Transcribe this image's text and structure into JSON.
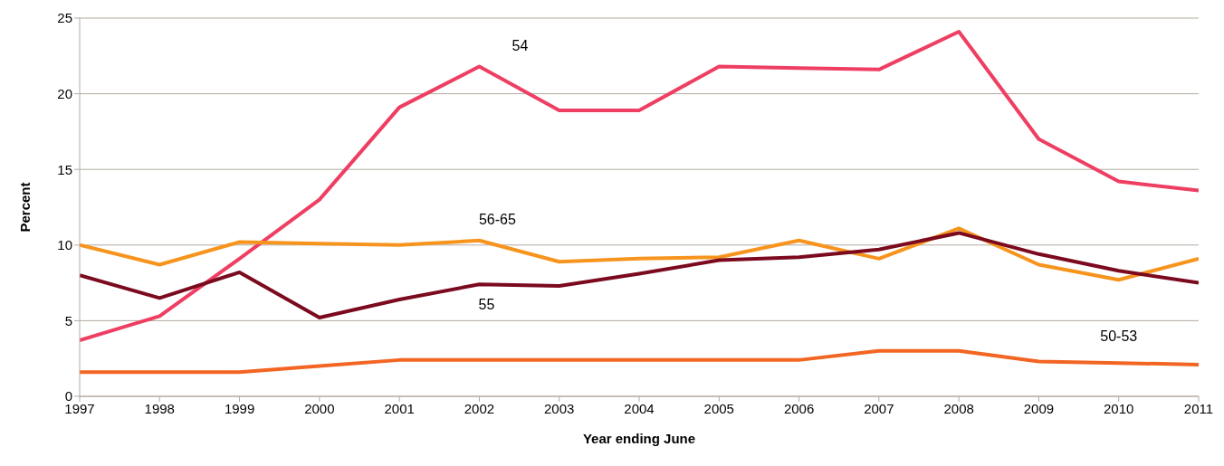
{
  "chart_data": {
    "type": "line",
    "xlabel": "Year ending June",
    "ylabel": "Percent",
    "x": [
      1997,
      1998,
      1999,
      2000,
      2001,
      2002,
      2003,
      2004,
      2005,
      2006,
      2007,
      2008,
      2009,
      2010,
      2011
    ],
    "xlim": [
      1997,
      2011
    ],
    "xticks": [
      1997,
      1998,
      1999,
      2000,
      2001,
      2002,
      2003,
      2004,
      2005,
      2006,
      2007,
      2008,
      2009,
      2010,
      2011
    ],
    "ylim": [
      0,
      25
    ],
    "yticks": [
      0,
      5,
      10,
      15,
      20,
      25
    ],
    "grid": "y",
    "legend": false,
    "marker": "none",
    "line_style": "solid",
    "series": [
      {
        "name": "54",
        "color": "#ee3f62",
        "values": [
          3.7,
          5.3,
          9.1,
          13.0,
          19.1,
          21.8,
          18.9,
          18.9,
          21.8,
          21.7,
          21.6,
          24.1,
          17.0,
          14.2,
          13.6
        ]
      },
      {
        "name": "56-65",
        "color": "#f7941d",
        "values": [
          10.0,
          8.7,
          10.2,
          10.1,
          10.0,
          10.3,
          8.9,
          9.1,
          9.2,
          10.3,
          9.1,
          11.1,
          8.7,
          7.7,
          9.1
        ]
      },
      {
        "name": "55",
        "color": "#7b0a1e",
        "values": [
          8.0,
          6.5,
          8.2,
          5.2,
          6.4,
          7.4,
          7.3,
          8.1,
          9.0,
          9.2,
          9.7,
          10.8,
          9.4,
          8.3,
          7.5
        ]
      },
      {
        "name": "50-53",
        "color": "#f26522",
        "values": [
          1.6,
          1.6,
          1.6,
          2.0,
          2.4,
          2.4,
          2.4,
          2.4,
          2.4,
          2.4,
          3.0,
          3.0,
          2.3,
          2.2,
          2.1
        ]
      }
    ]
  }
}
